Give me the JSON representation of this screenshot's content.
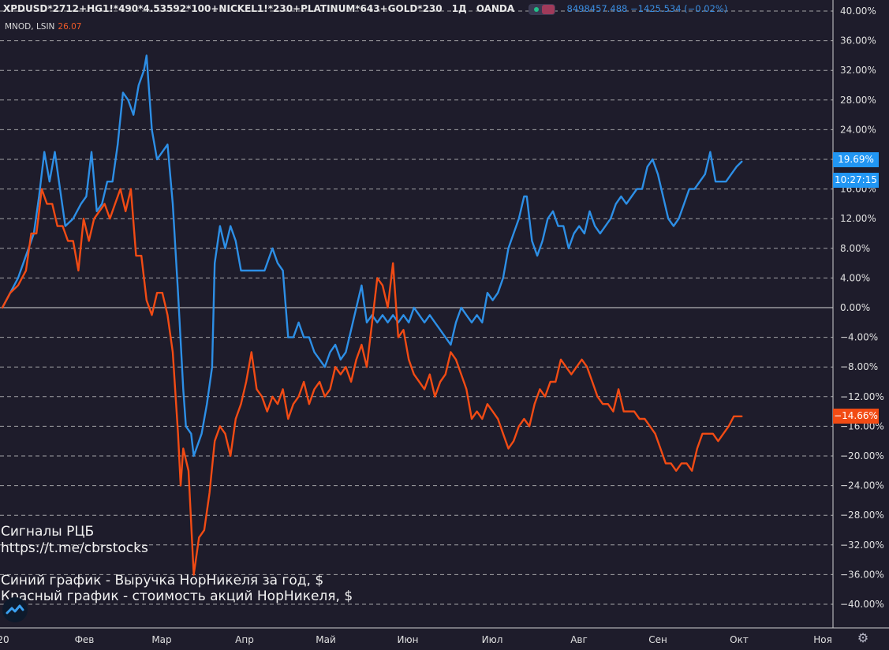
{
  "header": {
    "symbol": "XPDUSD*2712+HG1!*490*4.53592*100+NICKEL1!*230+PLATINUM*643+GOLD*230",
    "interval": "1Д",
    "source": "OANDA",
    "quote": "8498457.488 −1425.534 (−0.02%)",
    "compare_symbol": "MNOD, LSIN",
    "compare_value": "26.07"
  },
  "annotations": {
    "line1": "Сигналы РЦБ",
    "line2": "https://t.me/cbrstocks",
    "line3": "Синий график - Выручка НорНикеля за год, $",
    "line4": "Красный график - стоимость акций НорНикеля, $"
  },
  "price_tags": {
    "blue_value": "19.69%",
    "blue_time": "10:27:15",
    "red_value": "−14.66%"
  },
  "icons": {
    "logo": "tradingview-logo-icon",
    "settings": "gear-icon"
  },
  "colors": {
    "background": "#1e1c2b",
    "blue": "#2d8fe6",
    "red": "#f24b14",
    "grid": "#cfcfcf",
    "axis_text": "#e0e0e0"
  },
  "chart_data": {
    "type": "line",
    "x_axis": {
      "labels": [
        "20",
        "Фев",
        "Мар",
        "Апр",
        "Май",
        "Июн",
        "Июл",
        "Авг",
        "Сен",
        "Окт",
        "Ноя"
      ],
      "range_days": [
        0,
        315
      ]
    },
    "y_axis": {
      "unit": "%",
      "ylim": [
        -42,
        40
      ],
      "ticks": [
        40,
        36,
        32,
        28,
        24,
        20,
        16,
        12,
        8,
        4,
        0,
        -4,
        -8,
        -12,
        -16,
        -20,
        -24,
        -28,
        -32,
        -36,
        -40
      ],
      "tick_labels": [
        "40.00%",
        "36.00%",
        "32.00%",
        "28.00%",
        "24.00%",
        "20.00%",
        "16.00%",
        "12.00%",
        "8.00%",
        "4.00%",
        "0.00%",
        "−4.00%",
        "−8.00%",
        "−12.00%",
        "−16.00%",
        "−20.00%",
        "−24.00%",
        "−28.00%",
        "−32.00%",
        "−36.00%",
        "−40.00%"
      ]
    },
    "grid": "horizontal dashed",
    "series": [
      {
        "color": "#2d8fe6",
        "points": [
          [
            0,
            0
          ],
          [
            3,
            2
          ],
          [
            6,
            4
          ],
          [
            9,
            7
          ],
          [
            12,
            10
          ],
          [
            14,
            15
          ],
          [
            16,
            21
          ],
          [
            18,
            17
          ],
          [
            20,
            21
          ],
          [
            22,
            16
          ],
          [
            24,
            11
          ],
          [
            27,
            12
          ],
          [
            30,
            14
          ],
          [
            32,
            15
          ],
          [
            34,
            21
          ],
          [
            36,
            13
          ],
          [
            38,
            14
          ],
          [
            40,
            17
          ],
          [
            42,
            17
          ],
          [
            44,
            22
          ],
          [
            46,
            29
          ],
          [
            48,
            28
          ],
          [
            50,
            26
          ],
          [
            52,
            30
          ],
          [
            54,
            32
          ],
          [
            55,
            34
          ],
          [
            57,
            24
          ],
          [
            59,
            20
          ],
          [
            61,
            21
          ],
          [
            63,
            22
          ],
          [
            65,
            14
          ],
          [
            67,
            2
          ],
          [
            69,
            -11
          ],
          [
            70,
            -16
          ],
          [
            72,
            -17
          ],
          [
            73,
            -20
          ],
          [
            75,
            -18
          ],
          [
            76,
            -17
          ],
          [
            78,
            -13
          ],
          [
            80,
            -8
          ],
          [
            81,
            6
          ],
          [
            83,
            11
          ],
          [
            85,
            8
          ],
          [
            87,
            11
          ],
          [
            89,
            9
          ],
          [
            91,
            5
          ],
          [
            94,
            5
          ],
          [
            97,
            5
          ],
          [
            100,
            5
          ],
          [
            103,
            8
          ],
          [
            105,
            6
          ],
          [
            107,
            5
          ],
          [
            109,
            -4
          ],
          [
            111,
            -4
          ],
          [
            113,
            -2
          ],
          [
            115,
            -4
          ],
          [
            117,
            -4
          ],
          [
            119,
            -6
          ],
          [
            121,
            -7
          ],
          [
            123,
            -8
          ],
          [
            125,
            -6
          ],
          [
            127,
            -5
          ],
          [
            129,
            -7
          ],
          [
            131,
            -6
          ],
          [
            133,
            -3
          ],
          [
            135,
            0
          ],
          [
            137,
            3
          ],
          [
            139,
            -2
          ],
          [
            141,
            -1
          ],
          [
            143,
            -2
          ],
          [
            145,
            -1
          ],
          [
            147,
            -2
          ],
          [
            149,
            -1
          ],
          [
            151,
            -2
          ],
          [
            153,
            -1
          ],
          [
            155,
            -2
          ],
          [
            157,
            0
          ],
          [
            159,
            -1
          ],
          [
            161,
            -2
          ],
          [
            163,
            -1
          ],
          [
            165,
            -2
          ],
          [
            167,
            -3
          ],
          [
            169,
            -4
          ],
          [
            171,
            -5
          ],
          [
            173,
            -2
          ],
          [
            175,
            0
          ],
          [
            177,
            -1
          ],
          [
            179,
            -2
          ],
          [
            181,
            -1
          ],
          [
            183,
            -2
          ],
          [
            185,
            2
          ],
          [
            187,
            1
          ],
          [
            189,
            2
          ],
          [
            191,
            4
          ],
          [
            193,
            8
          ],
          [
            195,
            10
          ],
          [
            197,
            12
          ],
          [
            199,
            15
          ],
          [
            200,
            15
          ],
          [
            202,
            9
          ],
          [
            204,
            7
          ],
          [
            206,
            9
          ],
          [
            208,
            12
          ],
          [
            210,
            13
          ],
          [
            212,
            11
          ],
          [
            214,
            11
          ],
          [
            216,
            8
          ],
          [
            218,
            10
          ],
          [
            220,
            11
          ],
          [
            222,
            10
          ],
          [
            224,
            13
          ],
          [
            226,
            11
          ],
          [
            228,
            10
          ],
          [
            230,
            11
          ],
          [
            232,
            12
          ],
          [
            234,
            14
          ],
          [
            236,
            15
          ],
          [
            238,
            14
          ],
          [
            240,
            15
          ],
          [
            242,
            16
          ],
          [
            244,
            16
          ],
          [
            246,
            19
          ],
          [
            248,
            20
          ],
          [
            250,
            18
          ],
          [
            252,
            15
          ],
          [
            254,
            12
          ],
          [
            256,
            11
          ],
          [
            258,
            12
          ],
          [
            260,
            14
          ],
          [
            262,
            16
          ],
          [
            264,
            16
          ],
          [
            266,
            17
          ],
          [
            268,
            18
          ],
          [
            270,
            21
          ],
          [
            272,
            17
          ],
          [
            274,
            17
          ],
          [
            276,
            17
          ],
          [
            278,
            18
          ],
          [
            280,
            19
          ],
          [
            282,
            19.69
          ]
        ]
      },
      {
        "color": "#f24b14",
        "points": [
          [
            0,
            0
          ],
          [
            3,
            2
          ],
          [
            6,
            3
          ],
          [
            9,
            5
          ],
          [
            11,
            10
          ],
          [
            13,
            10
          ],
          [
            15,
            16
          ],
          [
            17,
            14
          ],
          [
            19,
            14
          ],
          [
            21,
            11
          ],
          [
            23,
            11
          ],
          [
            25,
            9
          ],
          [
            27,
            9
          ],
          [
            29,
            5
          ],
          [
            31,
            12
          ],
          [
            33,
            9
          ],
          [
            35,
            12
          ],
          [
            37,
            13
          ],
          [
            39,
            14
          ],
          [
            41,
            12
          ],
          [
            43,
            14
          ],
          [
            45,
            16
          ],
          [
            47,
            13
          ],
          [
            49,
            16
          ],
          [
            51,
            7
          ],
          [
            53,
            7
          ],
          [
            55,
            1
          ],
          [
            57,
            -1
          ],
          [
            59,
            2
          ],
          [
            61,
            2
          ],
          [
            63,
            -1
          ],
          [
            65,
            -6
          ],
          [
            67,
            -17
          ],
          [
            68,
            -24
          ],
          [
            69,
            -19
          ],
          [
            71,
            -22
          ],
          [
            73,
            -36
          ],
          [
            75,
            -31
          ],
          [
            77,
            -30
          ],
          [
            79,
            -25
          ],
          [
            81,
            -18
          ],
          [
            83,
            -16
          ],
          [
            85,
            -17
          ],
          [
            87,
            -20
          ],
          [
            89,
            -15
          ],
          [
            91,
            -13
          ],
          [
            93,
            -10
          ],
          [
            95,
            -6
          ],
          [
            97,
            -11
          ],
          [
            99,
            -12
          ],
          [
            101,
            -14
          ],
          [
            103,
            -12
          ],
          [
            105,
            -13
          ],
          [
            107,
            -11
          ],
          [
            109,
            -15
          ],
          [
            111,
            -13
          ],
          [
            113,
            -12
          ],
          [
            115,
            -10
          ],
          [
            117,
            -13
          ],
          [
            119,
            -11
          ],
          [
            121,
            -10
          ],
          [
            123,
            -12
          ],
          [
            125,
            -11
          ],
          [
            127,
            -8
          ],
          [
            129,
            -9
          ],
          [
            131,
            -8
          ],
          [
            133,
            -10
          ],
          [
            135,
            -7
          ],
          [
            137,
            -5
          ],
          [
            139,
            -8
          ],
          [
            141,
            -2
          ],
          [
            143,
            4
          ],
          [
            145,
            3
          ],
          [
            147,
            0
          ],
          [
            149,
            6
          ],
          [
            151,
            -4
          ],
          [
            153,
            -3
          ],
          [
            155,
            -7
          ],
          [
            157,
            -9
          ],
          [
            159,
            -10
          ],
          [
            161,
            -11
          ],
          [
            163,
            -9
          ],
          [
            165,
            -12
          ],
          [
            167,
            -10
          ],
          [
            169,
            -9
          ],
          [
            171,
            -6
          ],
          [
            173,
            -7
          ],
          [
            175,
            -9
          ],
          [
            177,
            -11
          ],
          [
            179,
            -15
          ],
          [
            181,
            -14
          ],
          [
            183,
            -15
          ],
          [
            185,
            -13
          ],
          [
            187,
            -14
          ],
          [
            189,
            -15
          ],
          [
            191,
            -17
          ],
          [
            193,
            -19
          ],
          [
            195,
            -18
          ],
          [
            197,
            -16
          ],
          [
            199,
            -15
          ],
          [
            201,
            -16
          ],
          [
            203,
            -13
          ],
          [
            205,
            -11
          ],
          [
            207,
            -12
          ],
          [
            209,
            -10
          ],
          [
            211,
            -10
          ],
          [
            213,
            -7
          ],
          [
            215,
            -8
          ],
          [
            217,
            -9
          ],
          [
            219,
            -8
          ],
          [
            221,
            -7
          ],
          [
            223,
            -8
          ],
          [
            225,
            -10
          ],
          [
            227,
            -12
          ],
          [
            229,
            -13
          ],
          [
            231,
            -13
          ],
          [
            233,
            -14
          ],
          [
            235,
            -11
          ],
          [
            237,
            -14
          ],
          [
            239,
            -14
          ],
          [
            241,
            -14
          ],
          [
            243,
            -15
          ],
          [
            245,
            -15
          ],
          [
            247,
            -16
          ],
          [
            249,
            -17
          ],
          [
            251,
            -19
          ],
          [
            253,
            -21
          ],
          [
            255,
            -21
          ],
          [
            257,
            -22
          ],
          [
            259,
            -21
          ],
          [
            261,
            -21
          ],
          [
            263,
            -22
          ],
          [
            265,
            -19
          ],
          [
            267,
            -17
          ],
          [
            269,
            -17
          ],
          [
            271,
            -17
          ],
          [
            273,
            -18
          ],
          [
            275,
            -17
          ],
          [
            277,
            -16
          ],
          [
            279,
            -14.66
          ],
          [
            282,
            -14.66
          ]
        ]
      }
    ]
  }
}
